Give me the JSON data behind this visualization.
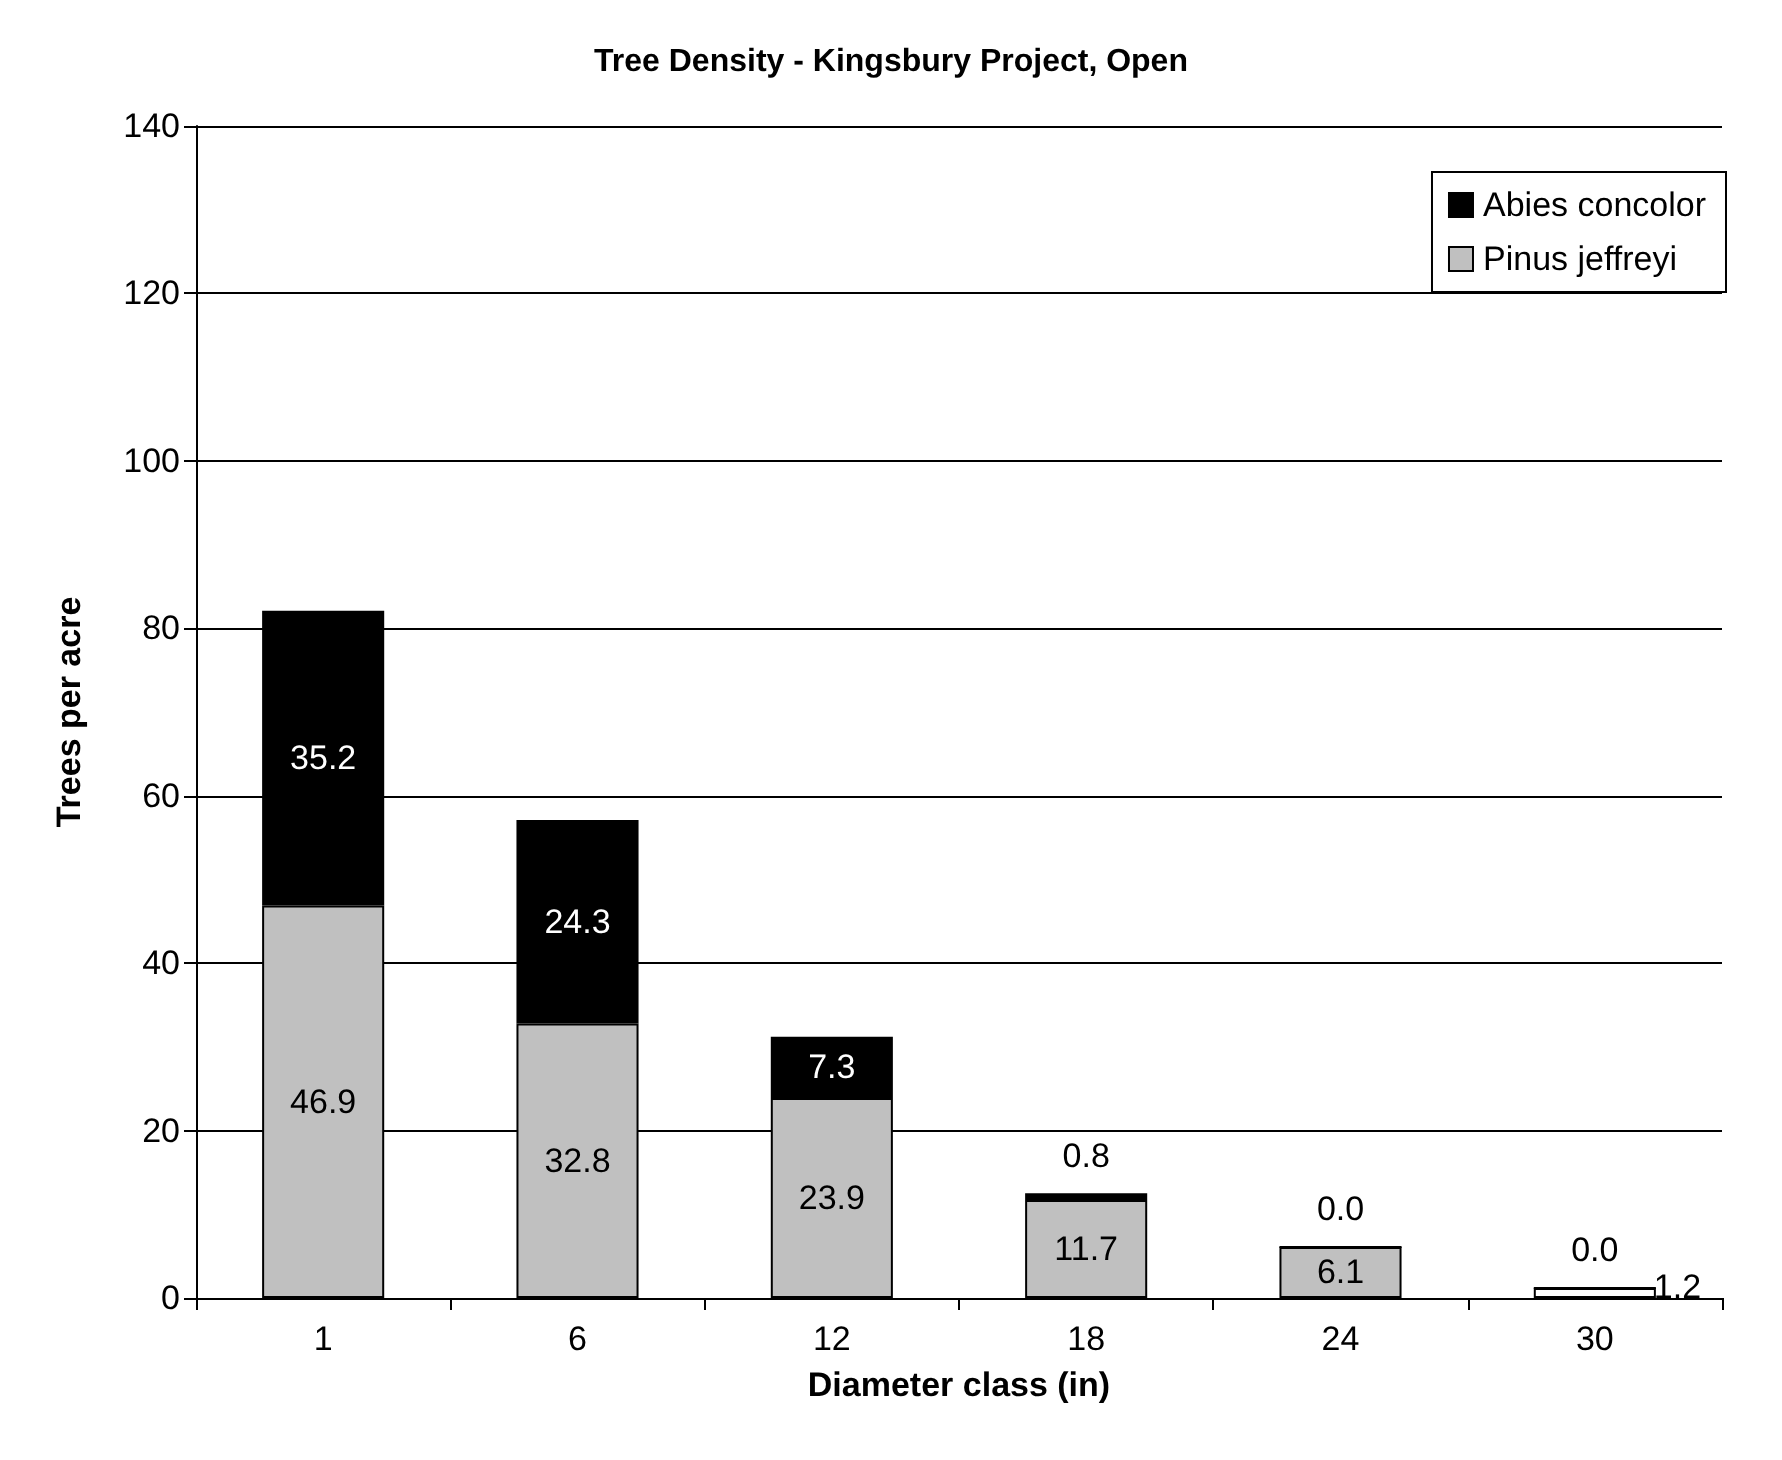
{
  "chart_data": {
    "type": "bar",
    "title": "Tree Density - Kingsbury Project, Open",
    "xlabel": "Diameter class (in)",
    "ylabel": "Trees per acre",
    "categories": [
      "1",
      "6",
      "12",
      "18",
      "24",
      "30"
    ],
    "stacked": true,
    "series": [
      {
        "name": "Pinus jeffreyi",
        "color": "#c0c0c0",
        "colors": [
          "#c0c0c0",
          "#c0c0c0",
          "#c0c0c0",
          "#c0c0c0",
          "#c0c0c0",
          "#ffffff"
        ],
        "values": [
          46.9,
          32.8,
          23.9,
          11.7,
          6.1,
          1.2
        ],
        "value_labels": [
          "46.9",
          "32.8",
          "23.9",
          "11.7",
          "6.1",
          "1.2"
        ]
      },
      {
        "name": "Abies concolor",
        "color": "#000000",
        "values": [
          35.2,
          24.3,
          7.3,
          0.8,
          0.0,
          0.0
        ],
        "value_labels": [
          "35.2",
          "24.3",
          "7.3",
          "0.8",
          "0.0",
          "0.0"
        ]
      }
    ],
    "ylim": [
      0,
      140
    ],
    "yticks": [
      0,
      20,
      40,
      60,
      80,
      100,
      120,
      140
    ],
    "grid": "y",
    "legend": "top right"
  }
}
